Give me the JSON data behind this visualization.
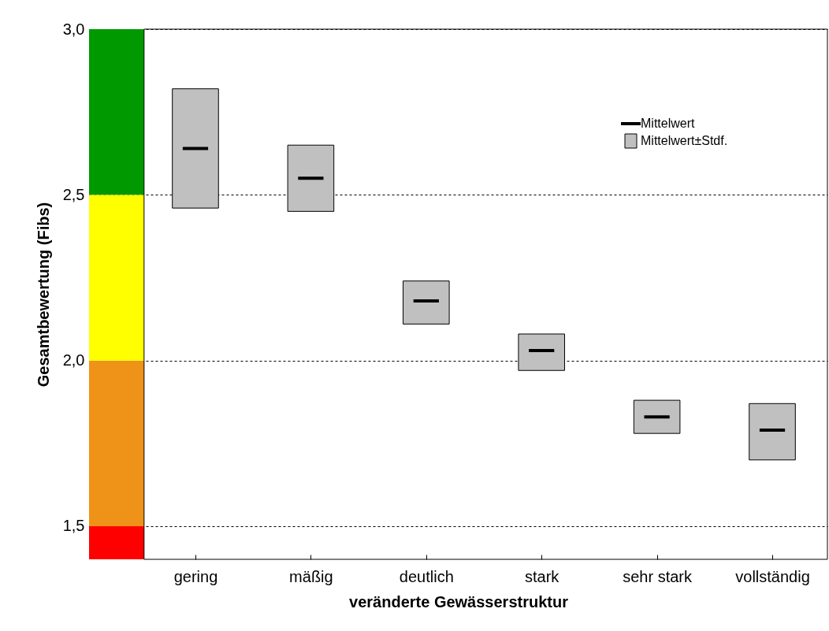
{
  "chart_data": {
    "type": "box",
    "xlabel": "veränderte Gewässerstruktur",
    "ylabel": "Gesamtbewertung (Fibs)",
    "categories": [
      "gering",
      "mäßig",
      "deutlich",
      "stark",
      "sehr stark",
      "vollständig"
    ],
    "ylim": [
      1.4,
      3.0
    ],
    "yticks": [
      {
        "value": 1.5,
        "label": "1,5"
      },
      {
        "value": 2.0,
        "label": "2,0"
      },
      {
        "value": 2.5,
        "label": "2,5"
      },
      {
        "value": 3.0,
        "label": "3,0"
      }
    ],
    "grid": "y",
    "legend": "top right",
    "annotations": [
      "Mittelwert"
    ],
    "bands": [
      {
        "axis": "y",
        "from": 1.4,
        "to": 1.5,
        "color": "#ff0000"
      },
      {
        "axis": "y",
        "from": 1.5,
        "to": 2.0,
        "color": "#ee9218"
      },
      {
        "axis": "y",
        "from": 2.0,
        "to": 2.5,
        "color": "#ffff00"
      },
      {
        "axis": "y",
        "from": 2.5,
        "to": 3.0,
        "color": "#009a00"
      }
    ],
    "series": [
      {
        "name": "Mittelwert±Stdf.",
        "color": "#c0c0c0",
        "boxes": [
          {
            "low": 2.46,
            "q1": 2.46,
            "median": 2.64,
            "q3": 2.82,
            "high": 2.82
          },
          {
            "low": 2.45,
            "q1": 2.45,
            "median": 2.55,
            "q3": 2.65,
            "high": 2.65
          },
          {
            "low": 2.11,
            "q1": 2.11,
            "median": 2.18,
            "q3": 2.24,
            "high": 2.24
          },
          {
            "low": 1.97,
            "q1": 1.97,
            "median": 2.03,
            "q3": 2.08,
            "high": 2.08
          },
          {
            "low": 1.78,
            "q1": 1.78,
            "median": 1.83,
            "q3": 1.88,
            "high": 1.88
          },
          {
            "low": 1.7,
            "q1": 1.7,
            "median": 1.79,
            "q3": 1.87,
            "high": 1.87
          }
        ]
      }
    ]
  }
}
